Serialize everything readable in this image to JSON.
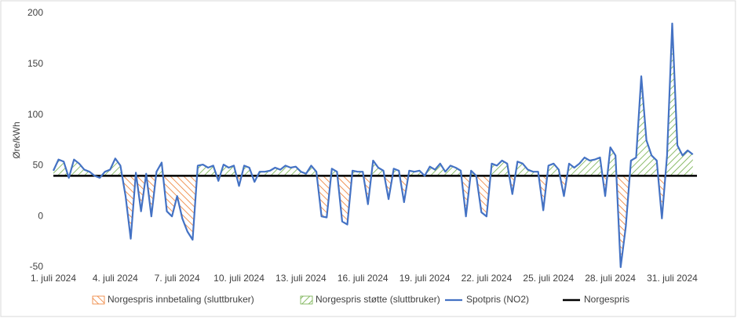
{
  "chart_data": {
    "type": "line",
    "ylabel": "Øre/kWh",
    "x": [
      1,
      1.25,
      1.5,
      1.75,
      2,
      2.25,
      2.5,
      2.75,
      3,
      3.25,
      3.5,
      3.75,
      4,
      4.25,
      4.5,
      4.75,
      5,
      5.25,
      5.5,
      5.75,
      6,
      6.25,
      6.5,
      6.75,
      7,
      7.25,
      7.5,
      7.75,
      8,
      8.25,
      8.5,
      8.75,
      9,
      9.25,
      9.5,
      9.75,
      10,
      10.25,
      10.5,
      10.75,
      11,
      11.25,
      11.5,
      11.75,
      12,
      12.25,
      12.5,
      12.75,
      13,
      13.25,
      13.5,
      13.75,
      14,
      14.25,
      14.5,
      14.75,
      15,
      15.25,
      15.5,
      15.75,
      16,
      16.25,
      16.5,
      16.75,
      17,
      17.25,
      17.5,
      17.75,
      18,
      18.25,
      18.5,
      18.75,
      19,
      19.25,
      19.5,
      19.75,
      20,
      20.25,
      20.5,
      20.75,
      21,
      21.25,
      21.5,
      21.75,
      22,
      22.25,
      22.5,
      22.75,
      23,
      23.25,
      23.5,
      23.75,
      24,
      24.25,
      24.5,
      24.75,
      25,
      25.25,
      25.5,
      25.75,
      26,
      26.25,
      26.5,
      26.75,
      27,
      27.25,
      27.5,
      27.75,
      28,
      28.25,
      28.5,
      28.75,
      29,
      29.25,
      29.5,
      29.75,
      30,
      30.25,
      30.5,
      30.75,
      31,
      31.25,
      31.5,
      31.75,
      32
    ],
    "xlim": [
      1,
      32.2
    ],
    "xticks": [
      {
        "value": 1,
        "label": "1. juli 2024"
      },
      {
        "value": 4,
        "label": "4. juli 2024"
      },
      {
        "value": 7,
        "label": "7. juli 2024"
      },
      {
        "value": 10,
        "label": "10. juli 2024"
      },
      {
        "value": 13,
        "label": "13. juli 2024"
      },
      {
        "value": 16,
        "label": "16. juli 2024"
      },
      {
        "value": 19,
        "label": "19. juli 2024"
      },
      {
        "value": 22,
        "label": "22. juli 2024"
      },
      {
        "value": 25,
        "label": "25. juli 2024"
      },
      {
        "value": 28,
        "label": "28. juli 2024"
      },
      {
        "value": 31,
        "label": "31. juli 2024"
      }
    ],
    "ylim": [
      -50,
      200
    ],
    "yticks": [
      -50,
      0,
      50,
      100,
      150,
      200
    ],
    "series": [
      {
        "name": "Spotpris (NO2)",
        "color": "#4472C4",
        "values": [
          45,
          56,
          54,
          38,
          56,
          52,
          46,
          44,
          40,
          38,
          44,
          46,
          57,
          50,
          20,
          -22,
          43,
          5,
          42,
          0,
          44,
          53,
          5,
          0,
          20,
          -2,
          -15,
          -23,
          50,
          51,
          48,
          50,
          35,
          51,
          48,
          50,
          30,
          50,
          48,
          34,
          44,
          44,
          45,
          48,
          46,
          50,
          48,
          49,
          44,
          42,
          50,
          44,
          0,
          -1,
          47,
          44,
          -5,
          -8,
          45,
          44,
          44,
          12,
          55,
          48,
          45,
          17,
          47,
          45,
          14,
          45,
          44,
          45,
          40,
          49,
          46,
          52,
          44,
          50,
          48,
          45,
          0,
          45,
          40,
          4,
          0,
          52,
          50,
          55,
          52,
          22,
          54,
          52,
          46,
          44,
          44,
          6,
          50,
          52,
          46,
          20,
          52,
          48,
          52,
          58,
          55,
          56,
          58,
          20,
          68,
          60,
          -50,
          -10,
          55,
          58,
          138,
          75,
          60,
          55,
          -2,
          60,
          190,
          70,
          60,
          65,
          61
        ]
      }
    ],
    "reference": {
      "name": "Norgespris",
      "value": 40,
      "color": "#000000"
    },
    "fills": [
      {
        "name": "Norgespris innbetaling (sluttbruker)",
        "color": "#ED7D31",
        "side": "below"
      },
      {
        "name": "Norgespris støtte (sluttbruker)",
        "color": "#70AD47",
        "side": "above"
      }
    ],
    "legend": "bottom"
  }
}
